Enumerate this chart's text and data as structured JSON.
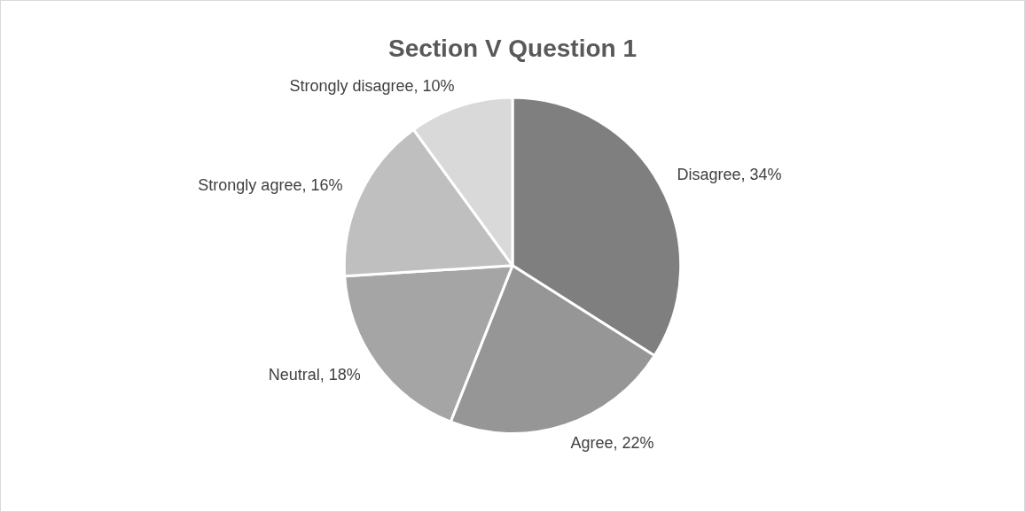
{
  "chart_data": {
    "type": "pie",
    "title": "Section V Question 1",
    "categories": [
      "Disagree",
      "Agree",
      "Neutral",
      "Strongly agree",
      "Strongly disagree"
    ],
    "values": [
      34,
      22,
      18,
      16,
      10
    ],
    "value_labels": [
      "34%",
      "22%",
      "18%",
      "16%",
      "10%"
    ],
    "colors": [
      "#7f7f7f",
      "#969696",
      "#a5a5a5",
      "#bfbfbf",
      "#d9d9d9"
    ],
    "legend": false
  }
}
